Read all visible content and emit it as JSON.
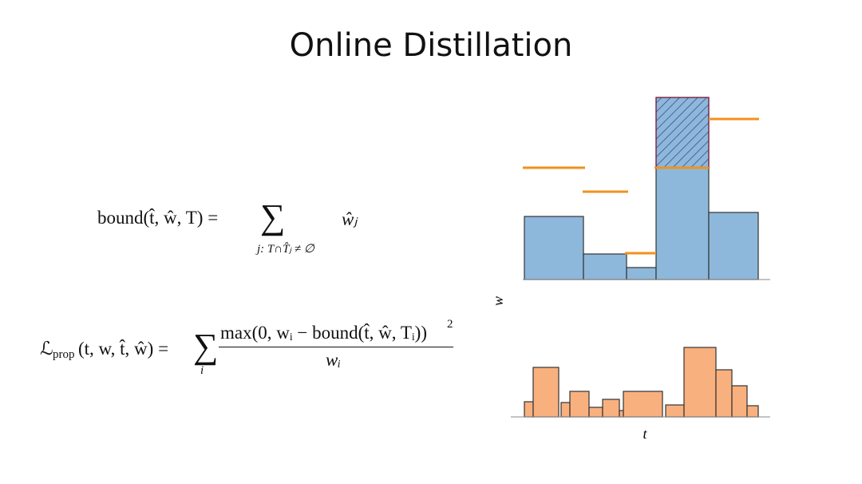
{
  "header": {
    "title": "Online Distillation"
  },
  "equation_1": {
    "lhs": "bound(t̂, ŵ, T) =",
    "operator": "∑",
    "operator_subscript": "j: T∩T̂ⱼ ≠ ∅",
    "term": "ŵⱼ"
  },
  "equation_2": {
    "lhs_symbol": "ℒ",
    "lhs_subscript": "prop",
    "lhs_args": "(t, w, t̂, ŵ) =",
    "operator": "∑",
    "operator_subscript": "i",
    "numerator": "max(0, wᵢ − bound(t̂, ŵ, Tᵢ))",
    "numerator_exponent": "2",
    "denominator": "wᵢ"
  },
  "diagram": {
    "y_label": "w",
    "x_label": "t"
  }
}
